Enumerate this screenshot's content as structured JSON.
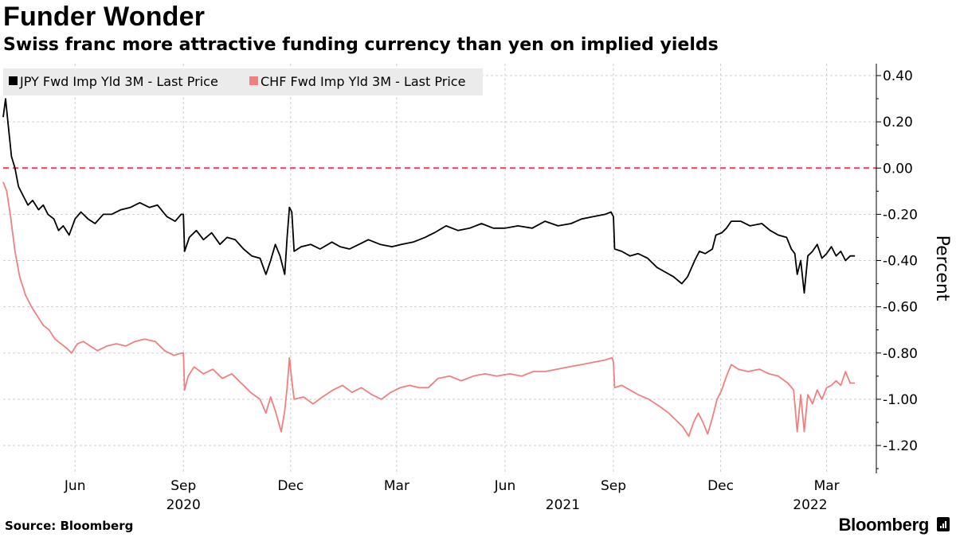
{
  "title": "Funder Wonder",
  "subtitle": "Swiss franc more attractive funding currency than yen on implied yields",
  "source": "Source: Bloomberg",
  "brand": "Bloomberg",
  "chart_data": {
    "type": "line",
    "title": "Funder Wonder",
    "subtitle": "Swiss franc more attractive funding currency than yen on implied yields",
    "xlabel": "",
    "ylabel": "Percent",
    "ylim": [
      -1.32,
      0.45
    ],
    "y_ticks": [
      {
        "value": 0.4,
        "label": "0.40"
      },
      {
        "value": 0.2,
        "label": "0.20"
      },
      {
        "value": 0.0,
        "label": "0.00"
      },
      {
        "value": -0.2,
        "label": "-0.20"
      },
      {
        "value": -0.4,
        "label": "-0.40"
      },
      {
        "value": -0.6,
        "label": "-0.60"
      },
      {
        "value": -0.8,
        "label": "-0.80"
      },
      {
        "value": -1.0,
        "label": "-1.00"
      },
      {
        "value": -1.2,
        "label": "-1.20"
      }
    ],
    "x_domain": [
      "2020-04-01",
      "2022-03-31"
    ],
    "x_month_ticks": [
      {
        "date": "2020-06-01",
        "label": "Jun"
      },
      {
        "date": "2020-09-01",
        "label": "Sep"
      },
      {
        "date": "2020-12-01",
        "label": "Dec"
      },
      {
        "date": "2021-03-01",
        "label": "Mar"
      },
      {
        "date": "2021-06-01",
        "label": "Jun"
      },
      {
        "date": "2021-09-01",
        "label": "Sep"
      },
      {
        "date": "2021-12-01",
        "label": "Dec"
      },
      {
        "date": "2022-03-01",
        "label": "Mar"
      }
    ],
    "x_year_labels": [
      {
        "date": "2020-09-01",
        "label": "2020"
      },
      {
        "date": "2021-07-20",
        "label": "2021"
      },
      {
        "date": "2022-02-15",
        "label": "2022"
      }
    ],
    "grid": true,
    "reference_line": {
      "value": 0.0,
      "color": "#ef3f5f",
      "style": "dashed"
    },
    "legend_position": "top-left",
    "series": [
      {
        "name": "JPY Fwd Imp Yld 3M - Last Price",
        "color": "#000000",
        "points": [
          [
            "2020-04-01",
            0.22
          ],
          [
            "2020-04-03",
            0.3
          ],
          [
            "2020-04-05",
            0.2
          ],
          [
            "2020-04-08",
            0.05
          ],
          [
            "2020-04-11",
            0.0
          ],
          [
            "2020-04-14",
            -0.08
          ],
          [
            "2020-04-18",
            -0.12
          ],
          [
            "2020-04-22",
            -0.16
          ],
          [
            "2020-04-26",
            -0.14
          ],
          [
            "2020-05-01",
            -0.18
          ],
          [
            "2020-05-05",
            -0.16
          ],
          [
            "2020-05-09",
            -0.2
          ],
          [
            "2020-05-14",
            -0.22
          ],
          [
            "2020-05-18",
            -0.27
          ],
          [
            "2020-05-22",
            -0.25
          ],
          [
            "2020-05-27",
            -0.29
          ],
          [
            "2020-06-01",
            -0.22
          ],
          [
            "2020-06-06",
            -0.19
          ],
          [
            "2020-06-12",
            -0.22
          ],
          [
            "2020-06-18",
            -0.24
          ],
          [
            "2020-06-25",
            -0.2
          ],
          [
            "2020-07-02",
            -0.2
          ],
          [
            "2020-07-10",
            -0.18
          ],
          [
            "2020-07-18",
            -0.17
          ],
          [
            "2020-07-26",
            -0.15
          ],
          [
            "2020-08-03",
            -0.17
          ],
          [
            "2020-08-10",
            -0.16
          ],
          [
            "2020-08-18",
            -0.21
          ],
          [
            "2020-08-25",
            -0.23
          ],
          [
            "2020-08-30",
            -0.2
          ],
          [
            "2020-09-01",
            -0.2
          ],
          [
            "2020-09-02",
            -0.36
          ],
          [
            "2020-09-06",
            -0.3
          ],
          [
            "2020-09-12",
            -0.27
          ],
          [
            "2020-09-18",
            -0.31
          ],
          [
            "2020-09-25",
            -0.28
          ],
          [
            "2020-10-02",
            -0.33
          ],
          [
            "2020-10-08",
            -0.3
          ],
          [
            "2020-10-15",
            -0.31
          ],
          [
            "2020-10-22",
            -0.35
          ],
          [
            "2020-10-29",
            -0.38
          ],
          [
            "2020-11-05",
            -0.39
          ],
          [
            "2020-11-10",
            -0.46
          ],
          [
            "2020-11-14",
            -0.4
          ],
          [
            "2020-11-18",
            -0.33
          ],
          [
            "2020-11-22",
            -0.38
          ],
          [
            "2020-11-26",
            -0.46
          ],
          [
            "2020-11-28",
            -0.3
          ],
          [
            "2020-11-30",
            -0.17
          ],
          [
            "2020-12-02",
            -0.19
          ],
          [
            "2020-12-04",
            -0.36
          ],
          [
            "2020-12-10",
            -0.34
          ],
          [
            "2020-12-18",
            -0.33
          ],
          [
            "2020-12-26",
            -0.35
          ],
          [
            "2021-01-05",
            -0.32
          ],
          [
            "2021-01-12",
            -0.34
          ],
          [
            "2021-01-20",
            -0.35
          ],
          [
            "2021-01-28",
            -0.33
          ],
          [
            "2021-02-05",
            -0.31
          ],
          [
            "2021-02-15",
            -0.33
          ],
          [
            "2021-02-25",
            -0.34
          ],
          [
            "2021-03-05",
            -0.33
          ],
          [
            "2021-03-15",
            -0.32
          ],
          [
            "2021-03-25",
            -0.3
          ],
          [
            "2021-04-02",
            -0.28
          ],
          [
            "2021-04-12",
            -0.25
          ],
          [
            "2021-04-22",
            -0.27
          ],
          [
            "2021-05-02",
            -0.26
          ],
          [
            "2021-05-12",
            -0.24
          ],
          [
            "2021-05-22",
            -0.26
          ],
          [
            "2021-06-01",
            -0.26
          ],
          [
            "2021-06-12",
            -0.25
          ],
          [
            "2021-06-24",
            -0.26
          ],
          [
            "2021-07-05",
            -0.23
          ],
          [
            "2021-07-16",
            -0.25
          ],
          [
            "2021-07-27",
            -0.24
          ],
          [
            "2021-08-05",
            -0.22
          ],
          [
            "2021-08-15",
            -0.21
          ],
          [
            "2021-08-25",
            -0.2
          ],
          [
            "2021-08-30",
            -0.19
          ],
          [
            "2021-09-01",
            -0.21
          ],
          [
            "2021-09-02",
            -0.35
          ],
          [
            "2021-09-08",
            -0.36
          ],
          [
            "2021-09-15",
            -0.38
          ],
          [
            "2021-09-22",
            -0.37
          ],
          [
            "2021-09-30",
            -0.39
          ],
          [
            "2021-10-08",
            -0.43
          ],
          [
            "2021-10-15",
            -0.45
          ],
          [
            "2021-10-22",
            -0.47
          ],
          [
            "2021-10-29",
            -0.5
          ],
          [
            "2021-11-03",
            -0.47
          ],
          [
            "2021-11-09",
            -0.4
          ],
          [
            "2021-11-13",
            -0.36
          ],
          [
            "2021-11-18",
            -0.37
          ],
          [
            "2021-11-24",
            -0.35
          ],
          [
            "2021-11-27",
            -0.29
          ],
          [
            "2021-12-02",
            -0.28
          ],
          [
            "2021-12-06",
            -0.26
          ],
          [
            "2021-12-10",
            -0.23
          ],
          [
            "2021-12-18",
            -0.23
          ],
          [
            "2021-12-26",
            -0.25
          ],
          [
            "2022-01-05",
            -0.24
          ],
          [
            "2022-01-12",
            -0.27
          ],
          [
            "2022-01-19",
            -0.29
          ],
          [
            "2022-01-26",
            -0.3
          ],
          [
            "2022-01-30",
            -0.35
          ],
          [
            "2022-02-02",
            -0.37
          ],
          [
            "2022-02-04",
            -0.46
          ],
          [
            "2022-02-07",
            -0.4
          ],
          [
            "2022-02-10",
            -0.54
          ],
          [
            "2022-02-13",
            -0.38
          ],
          [
            "2022-02-17",
            -0.36
          ],
          [
            "2022-02-21",
            -0.33
          ],
          [
            "2022-02-25",
            -0.39
          ],
          [
            "2022-03-01",
            -0.37
          ],
          [
            "2022-03-05",
            -0.34
          ],
          [
            "2022-03-09",
            -0.38
          ],
          [
            "2022-03-13",
            -0.36
          ],
          [
            "2022-03-17",
            -0.4
          ],
          [
            "2022-03-21",
            -0.38
          ],
          [
            "2022-03-25",
            -0.38
          ]
        ]
      },
      {
        "name": "CHF Fwd Imp Yld 3M - Last Price",
        "color": "#f08080",
        "points": [
          [
            "2020-04-01",
            -0.06
          ],
          [
            "2020-04-04",
            -0.1
          ],
          [
            "2020-04-07",
            -0.2
          ],
          [
            "2020-04-11",
            -0.36
          ],
          [
            "2020-04-15",
            -0.47
          ],
          [
            "2020-04-20",
            -0.55
          ],
          [
            "2020-04-25",
            -0.6
          ],
          [
            "2020-04-30",
            -0.64
          ],
          [
            "2020-05-05",
            -0.68
          ],
          [
            "2020-05-10",
            -0.7
          ],
          [
            "2020-05-15",
            -0.74
          ],
          [
            "2020-05-20",
            -0.76
          ],
          [
            "2020-05-25",
            -0.78
          ],
          [
            "2020-05-29",
            -0.8
          ],
          [
            "2020-06-03",
            -0.76
          ],
          [
            "2020-06-08",
            -0.75
          ],
          [
            "2020-06-14",
            -0.77
          ],
          [
            "2020-06-20",
            -0.79
          ],
          [
            "2020-06-28",
            -0.77
          ],
          [
            "2020-07-06",
            -0.76
          ],
          [
            "2020-07-14",
            -0.77
          ],
          [
            "2020-07-22",
            -0.75
          ],
          [
            "2020-07-30",
            -0.74
          ],
          [
            "2020-08-08",
            -0.75
          ],
          [
            "2020-08-16",
            -0.79
          ],
          [
            "2020-08-24",
            -0.81
          ],
          [
            "2020-08-30",
            -0.8
          ],
          [
            "2020-09-01",
            -0.8
          ],
          [
            "2020-09-02",
            -0.96
          ],
          [
            "2020-09-05",
            -0.9
          ],
          [
            "2020-09-10",
            -0.86
          ],
          [
            "2020-09-18",
            -0.89
          ],
          [
            "2020-09-26",
            -0.87
          ],
          [
            "2020-10-04",
            -0.91
          ],
          [
            "2020-10-12",
            -0.89
          ],
          [
            "2020-10-20",
            -0.93
          ],
          [
            "2020-10-28",
            -0.97
          ],
          [
            "2020-11-05",
            -1.0
          ],
          [
            "2020-11-10",
            -1.06
          ],
          [
            "2020-11-14",
            -0.99
          ],
          [
            "2020-11-18",
            -1.05
          ],
          [
            "2020-11-23",
            -1.14
          ],
          [
            "2020-11-26",
            -1.05
          ],
          [
            "2020-11-28",
            -0.95
          ],
          [
            "2020-11-30",
            -0.82
          ],
          [
            "2020-12-02",
            -0.92
          ],
          [
            "2020-12-04",
            -1.0
          ],
          [
            "2020-12-12",
            -0.99
          ],
          [
            "2020-12-20",
            -1.02
          ],
          [
            "2020-12-28",
            -0.99
          ],
          [
            "2021-01-06",
            -0.96
          ],
          [
            "2021-01-14",
            -0.94
          ],
          [
            "2021-01-22",
            -0.97
          ],
          [
            "2021-01-30",
            -0.95
          ],
          [
            "2021-02-08",
            -0.98
          ],
          [
            "2021-02-16",
            -1.0
          ],
          [
            "2021-02-24",
            -0.97
          ],
          [
            "2021-03-04",
            -0.95
          ],
          [
            "2021-03-12",
            -0.94
          ],
          [
            "2021-03-20",
            -0.95
          ],
          [
            "2021-03-28",
            -0.95
          ],
          [
            "2021-04-05",
            -0.91
          ],
          [
            "2021-04-15",
            -0.9
          ],
          [
            "2021-04-25",
            -0.92
          ],
          [
            "2021-05-05",
            -0.9
          ],
          [
            "2021-05-15",
            -0.89
          ],
          [
            "2021-05-25",
            -0.9
          ],
          [
            "2021-06-05",
            -0.89
          ],
          [
            "2021-06-15",
            -0.9
          ],
          [
            "2021-06-25",
            -0.88
          ],
          [
            "2021-07-05",
            -0.88
          ],
          [
            "2021-07-15",
            -0.87
          ],
          [
            "2021-07-25",
            -0.86
          ],
          [
            "2021-08-05",
            -0.85
          ],
          [
            "2021-08-15",
            -0.84
          ],
          [
            "2021-08-25",
            -0.83
          ],
          [
            "2021-08-31",
            -0.82
          ],
          [
            "2021-09-01",
            -0.84
          ],
          [
            "2021-09-02",
            -0.95
          ],
          [
            "2021-09-08",
            -0.94
          ],
          [
            "2021-09-15",
            -0.96
          ],
          [
            "2021-09-22",
            -0.98
          ],
          [
            "2021-10-01",
            -1.0
          ],
          [
            "2021-10-10",
            -1.03
          ],
          [
            "2021-10-18",
            -1.06
          ],
          [
            "2021-10-24",
            -1.09
          ],
          [
            "2021-10-30",
            -1.12
          ],
          [
            "2021-11-04",
            -1.16
          ],
          [
            "2021-11-08",
            -1.1
          ],
          [
            "2021-11-12",
            -1.06
          ],
          [
            "2021-11-16",
            -1.1
          ],
          [
            "2021-11-20",
            -1.15
          ],
          [
            "2021-11-24",
            -1.08
          ],
          [
            "2021-11-28",
            -1.0
          ],
          [
            "2021-12-02",
            -0.96
          ],
          [
            "2021-12-06",
            -0.9
          ],
          [
            "2021-12-10",
            -0.85
          ],
          [
            "2021-12-16",
            -0.87
          ],
          [
            "2021-12-24",
            -0.88
          ],
          [
            "2022-01-03",
            -0.87
          ],
          [
            "2022-01-11",
            -0.89
          ],
          [
            "2022-01-19",
            -0.9
          ],
          [
            "2022-01-27",
            -0.93
          ],
          [
            "2022-02-01",
            -0.96
          ],
          [
            "2022-02-04",
            -1.14
          ],
          [
            "2022-02-07",
            -0.98
          ],
          [
            "2022-02-10",
            -1.14
          ],
          [
            "2022-02-13",
            -0.98
          ],
          [
            "2022-02-17",
            -1.02
          ],
          [
            "2022-02-21",
            -0.96
          ],
          [
            "2022-02-25",
            -1.0
          ],
          [
            "2022-03-01",
            -0.95
          ],
          [
            "2022-03-05",
            -0.94
          ],
          [
            "2022-03-09",
            -0.92
          ],
          [
            "2022-03-13",
            -0.94
          ],
          [
            "2022-03-17",
            -0.88
          ],
          [
            "2022-03-21",
            -0.93
          ],
          [
            "2022-03-25",
            -0.93
          ]
        ]
      }
    ]
  }
}
